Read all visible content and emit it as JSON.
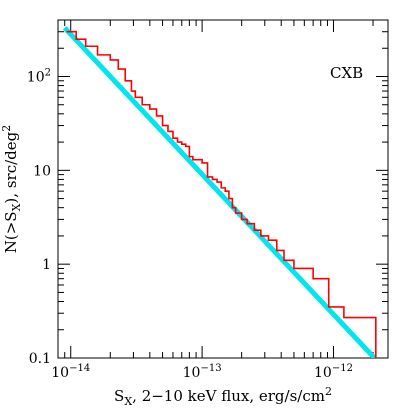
{
  "chart_data": {
    "type": "line",
    "title": "",
    "annotation": "CXB",
    "xlabel": {
      "base": "S",
      "sub": "X",
      "rest": ", 2−10 keV flux, erg/s/cm",
      "sup": "2"
    },
    "ylabel": {
      "pre": "N(>S",
      "sub": "X",
      "mid": "), src/deg",
      "sup": "2"
    },
    "xscale": "log",
    "yscale": "log",
    "xlim": [
      8e-15,
      2.6e-12
    ],
    "ylim": [
      0.1,
      400
    ],
    "grid": false,
    "legend": "none",
    "x_ticks": [
      {
        "value": 1e-14,
        "base": "10",
        "exp": "−14"
      },
      {
        "value": 1e-13,
        "base": "10",
        "exp": "−13"
      },
      {
        "value": 1e-12,
        "base": "10",
        "exp": "−12"
      }
    ],
    "y_ticks": [
      {
        "value": 0.1,
        "label": "0.1"
      },
      {
        "value": 1,
        "label": "1"
      },
      {
        "value": 10,
        "label": "10"
      },
      {
        "value": 100,
        "base": "10",
        "exp": "2"
      }
    ],
    "series": [
      {
        "color": "#ff0000",
        "style": "step",
        "x": [
          9.3e-15,
          1.1e-14,
          1.3e-14,
          1.6e-14,
          2e-14,
          2.3e-14,
          2.6e-14,
          2.9e-14,
          3.1e-14,
          3.5e-14,
          4e-14,
          4.5e-14,
          5e-14,
          5.5e-14,
          6e-14,
          6.5e-14,
          7e-14,
          7.5e-14,
          8e-14,
          8.5e-14,
          9e-14,
          1e-13,
          1.1e-13,
          1.2e-13,
          1.3e-13,
          1.4e-13,
          1.5e-13,
          1.6e-13,
          1.7e-13,
          1.8e-13,
          2e-13,
          2.2e-13,
          2.5e-13,
          2.8e-13,
          3.2e-13,
          3.7e-13,
          4.2e-13,
          5e-13,
          7e-13,
          9.2e-13,
          1.2e-12,
          2.1e-12
        ],
        "y": [
          300,
          250,
          210,
          170,
          150,
          120,
          90,
          70,
          60,
          50,
          45,
          38,
          30,
          26,
          22,
          20,
          19,
          18,
          14,
          13,
          13,
          12,
          8.5,
          8,
          7.5,
          6.5,
          6,
          5,
          4,
          3.5,
          3,
          2.7,
          2.3,
          2,
          1.8,
          1.4,
          1.1,
          0.9,
          0.7,
          0.35,
          0.27,
          0.1
        ]
      },
      {
        "color": "#00e5ee",
        "style": "line",
        "x": [
          9e-15,
          2.05e-12
        ],
        "y": [
          330,
          0.1
        ]
      }
    ]
  }
}
